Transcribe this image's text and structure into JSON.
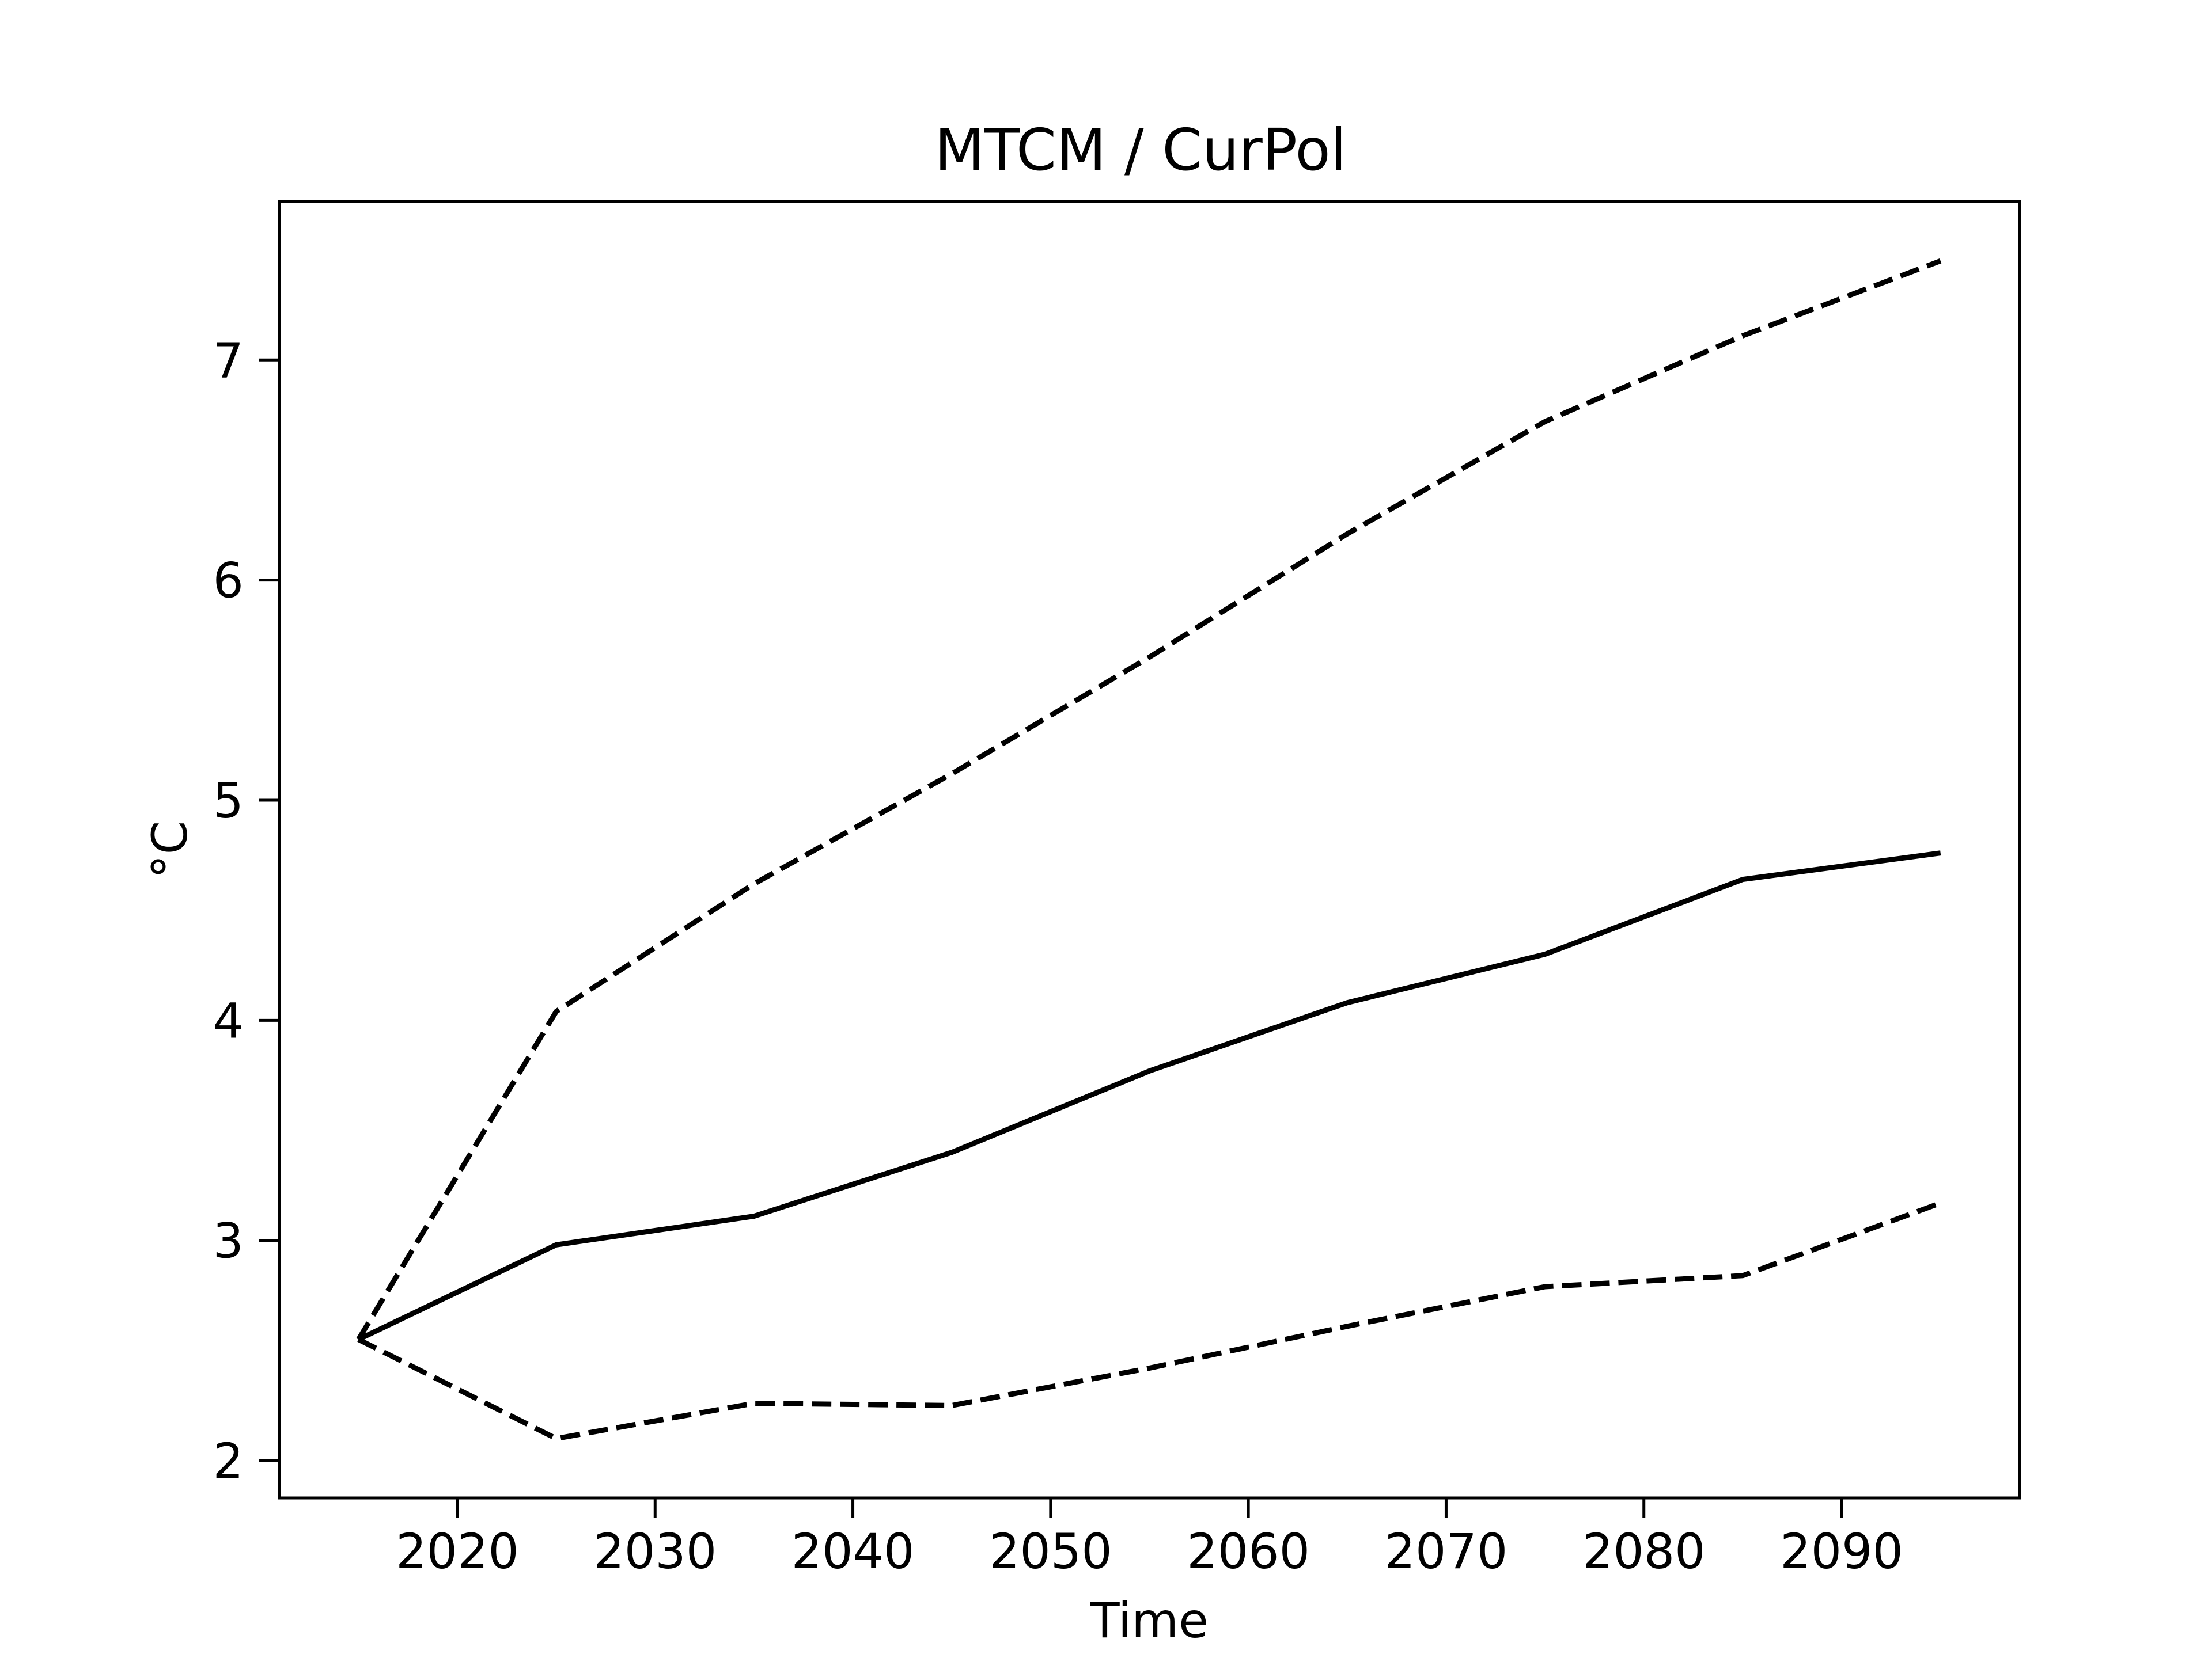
{
  "chart_data": {
    "type": "line",
    "title": "MTCM / CurPol",
    "xlabel": "Time",
    "ylabel": "°C",
    "xlim": [
      2011,
      2099
    ],
    "ylim": [
      1.83,
      7.72
    ],
    "xticks": [
      "2020",
      "2030",
      "2040",
      "2050",
      "2060",
      "2070",
      "2080",
      "2090"
    ],
    "yticks": [
      "2",
      "3",
      "4",
      "5",
      "6",
      "7"
    ],
    "grid": false,
    "x": [
      2015,
      2025,
      2035,
      2045,
      2055,
      2065,
      2075,
      2085,
      2095
    ],
    "series": [
      {
        "style": "dashed",
        "color": "#000000",
        "values": [
          2.55,
          4.04,
          4.62,
          5.12,
          5.65,
          6.21,
          6.72,
          7.11,
          7.45
        ]
      },
      {
        "style": "solid",
        "color": "#000000",
        "values": [
          2.55,
          2.98,
          3.11,
          3.4,
          3.77,
          4.08,
          4.3,
          4.64,
          4.76
        ]
      },
      {
        "style": "dashed",
        "color": "#000000",
        "values": [
          2.55,
          2.1,
          2.26,
          2.25,
          2.42,
          2.61,
          2.79,
          2.84,
          3.17
        ]
      }
    ]
  }
}
